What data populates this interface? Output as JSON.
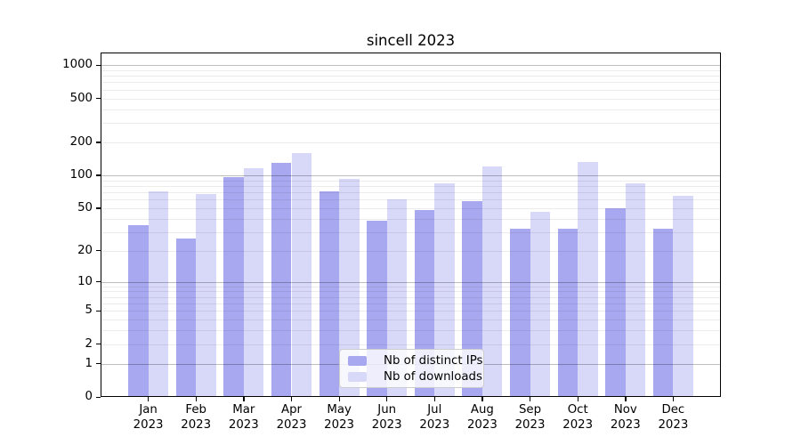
{
  "title": "sincell 2023",
  "colors": {
    "distinct_ips": "#a8a8f0",
    "downloads": "#d8d8f8",
    "grid_major": "rgba(0,0,0,0.26)",
    "grid_minor": "rgba(0,0,0,0.075)"
  },
  "legend": {
    "items": [
      {
        "label": "Nb of distinct IPs",
        "color": "#a8a8f0"
      },
      {
        "label": "Nb of downloads",
        "color": "#d8d8f8"
      }
    ]
  },
  "chart_data": {
    "type": "bar",
    "title": "sincell 2023",
    "categories": [
      "Jan 2023",
      "Feb 2023",
      "Mar 2023",
      "Apr 2023",
      "May 2023",
      "Jun 2023",
      "Jul 2023",
      "Aug 2023",
      "Sep 2023",
      "Oct 2023",
      "Nov 2023",
      "Dec 2023"
    ],
    "series": [
      {
        "name": "Nb of distinct IPs",
        "color": "#a8a8f0",
        "values": [
          35,
          26,
          96,
          131,
          71,
          38,
          48,
          58,
          32,
          32,
          50,
          32
        ]
      },
      {
        "name": "Nb of downloads",
        "color": "#d8d8f8",
        "values": [
          71,
          67,
          116,
          160,
          93,
          60,
          85,
          120,
          46,
          132,
          84,
          65
        ]
      }
    ],
    "xlabel": "",
    "ylabel": "",
    "yscale": "log1p",
    "y_ticks": [
      0,
      1,
      2,
      5,
      10,
      20,
      50,
      100,
      200,
      500,
      1000
    ],
    "ylim": [
      0,
      1300
    ],
    "grid": "horizontal major+minor log, drawn above bars",
    "legend_position": "lower center"
  }
}
